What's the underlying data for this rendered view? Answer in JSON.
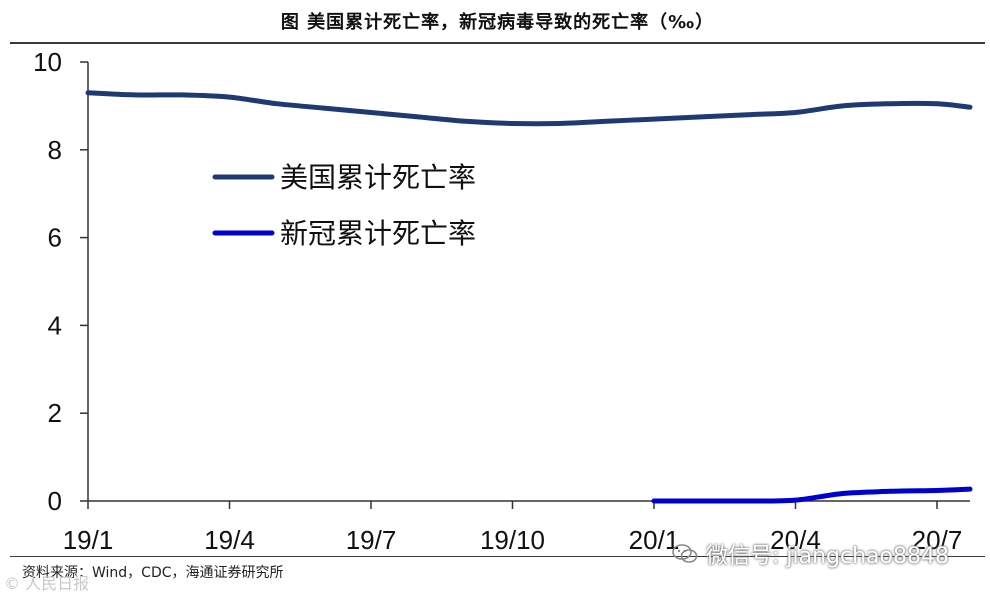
{
  "header": {
    "title": "图  美国累计死亡率，新冠病毒导致的死亡率（‰）"
  },
  "footer": {
    "source": "资料来源：Wind，CDC，海通证券研究所",
    "watermark": "微信号: jiangchao8848",
    "watermark_icon": "wechat-icon",
    "corner_mark": "© 人民日报"
  },
  "chart_data": {
    "type": "line",
    "title": "美国累计死亡率，新冠病毒导致的死亡率（‰）",
    "xlabel": "",
    "ylabel": "",
    "x_ticks": [
      "19/1",
      "19/4",
      "19/7",
      "19/10",
      "20/1",
      "20/4",
      "20/7"
    ],
    "x_range": [
      0,
      18.7
    ],
    "ylim": [
      0,
      10
    ],
    "y_ticks": [
      0,
      2,
      4,
      6,
      8,
      10
    ],
    "grid": false,
    "legend_position": "upper-left inside",
    "series": [
      {
        "name": "美国累计死亡率",
        "color": "#1f3a73",
        "x": [
          0,
          1,
          2,
          3,
          4,
          5,
          6,
          7,
          8,
          9,
          10,
          11,
          12,
          13,
          14,
          15,
          16,
          17,
          18,
          18.7
        ],
        "y": [
          9.3,
          9.25,
          9.25,
          9.2,
          9.05,
          8.95,
          8.85,
          8.75,
          8.65,
          8.6,
          8.6,
          8.65,
          8.7,
          8.75,
          8.8,
          8.85,
          9.0,
          9.05,
          9.05,
          8.97
        ]
      },
      {
        "name": "新冠累计死亡率",
        "color": "#0000cc",
        "x": [
          12,
          13,
          14,
          15,
          16,
          17,
          18,
          18.7
        ],
        "y": [
          0.0,
          0.0,
          0.0,
          0.02,
          0.17,
          0.22,
          0.24,
          0.27
        ]
      }
    ]
  }
}
